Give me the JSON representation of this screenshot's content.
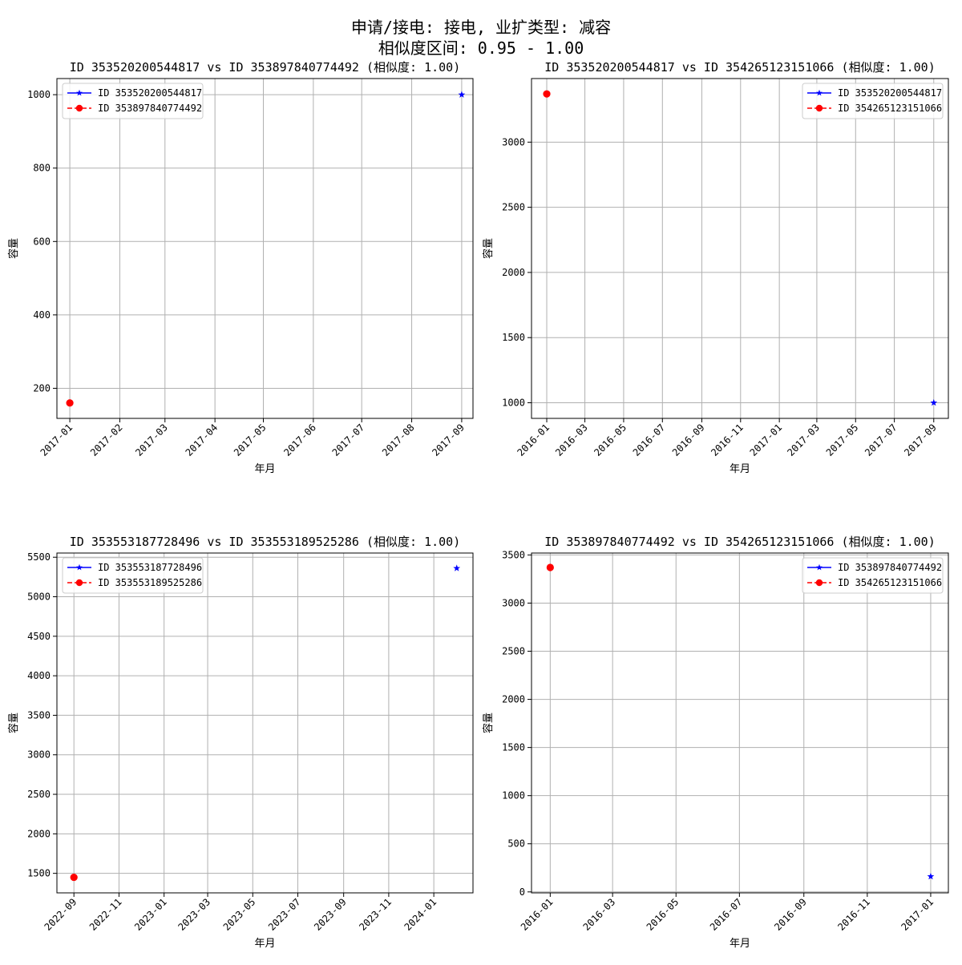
{
  "figure": {
    "title_line1": "申请/接电: 接电, 业扩类型: 减容",
    "title_line2": "相似度区间: 0.95 - 1.00"
  },
  "colors": {
    "series_a": "#0000ff",
    "series_b": "#ff0000",
    "grid": "#b0b0b0"
  },
  "chart_data": [
    {
      "type": "line",
      "title": "ID 353520200544817 vs ID 353897840774492 (相似度: 1.00)",
      "xlabel": "年月",
      "ylabel": "容量",
      "x_ticks": [
        "2017-01",
        "2017-02",
        "2017-03",
        "2017-04",
        "2017-05",
        "2017-06",
        "2017-07",
        "2017-08",
        "2017-09"
      ],
      "xlim": [
        "2016-12-24",
        "2017-09-08"
      ],
      "y_ticks": [
        200,
        400,
        600,
        800,
        1000
      ],
      "ylim": [
        118,
        1044
      ],
      "grid": true,
      "legend": "top-left",
      "series": [
        {
          "name": "ID 353520200544817",
          "color": "#0000ff",
          "marker": "star",
          "x": [
            "2017-09-01"
          ],
          "y": [
            1000
          ]
        },
        {
          "name": "ID 353897840774492",
          "color": "#ff0000",
          "marker": "circle",
          "x": [
            "2017-01-01"
          ],
          "y": [
            160
          ]
        }
      ]
    },
    {
      "type": "line",
      "title": "ID 353520200544817 vs ID 354265123151066 (相似度: 1.00)",
      "xlabel": "年月",
      "ylabel": "容量",
      "x_ticks": [
        "2016-01",
        "2016-03",
        "2016-05",
        "2016-07",
        "2016-09",
        "2016-11",
        "2017-01",
        "2017-03",
        "2017-05",
        "2017-07",
        "2017-09"
      ],
      "xlim": [
        "2015-12-08",
        "2017-09-24"
      ],
      "y_ticks": [
        1000,
        1500,
        2000,
        2500,
        3000
      ],
      "ylim": [
        880,
        3488
      ],
      "grid": true,
      "legend": "top-right",
      "series": [
        {
          "name": "ID 353520200544817",
          "color": "#0000ff",
          "marker": "star",
          "x": [
            "2017-09-01"
          ],
          "y": [
            1000
          ]
        },
        {
          "name": "ID 354265123151066",
          "color": "#ff0000",
          "marker": "circle",
          "x": [
            "2016-01-01"
          ],
          "y": [
            3370
          ]
        }
      ]
    },
    {
      "type": "line",
      "title": "ID 353553187728496 vs ID 353553189525286 (相似度: 1.00)",
      "xlabel": "年月",
      "ylabel": "容量",
      "x_ticks": [
        "2022-09",
        "2022-11",
        "2023-01",
        "2023-03",
        "2023-05",
        "2023-07",
        "2023-09",
        "2023-11",
        "2024-01"
      ],
      "xlim": [
        "2022-08-09",
        "2024-02-23"
      ],
      "y_ticks": [
        1500,
        2000,
        2500,
        3000,
        3500,
        4000,
        4500,
        5000,
        5500
      ],
      "ylim": [
        1253,
        5553
      ],
      "grid": true,
      "legend": "top-left",
      "series": [
        {
          "name": "ID 353553187728496",
          "color": "#0000ff",
          "marker": "star",
          "x": [
            "2024-02-01"
          ],
          "y": [
            5360
          ]
        },
        {
          "name": "ID 353553189525286",
          "color": "#ff0000",
          "marker": "circle",
          "x": [
            "2022-09-01"
          ],
          "y": [
            1450
          ]
        }
      ]
    },
    {
      "type": "line",
      "title": "ID 353897840774492 vs ID 354265123151066 (相似度: 1.00)",
      "xlabel": "年月",
      "ylabel": "容量",
      "x_ticks": [
        "2016-01",
        "2016-03",
        "2016-05",
        "2016-07",
        "2016-09",
        "2016-11",
        "2017-01"
      ],
      "xlim": [
        "2015-12-14",
        "2017-01-18"
      ],
      "y_ticks": [
        0,
        500,
        1000,
        1500,
        2000,
        2500,
        3000,
        3500
      ],
      "ylim": [
        -10,
        3520
      ],
      "grid": true,
      "legend": "top-right",
      "series": [
        {
          "name": "ID 353897840774492",
          "color": "#0000ff",
          "marker": "star",
          "x": [
            "2017-01-01"
          ],
          "y": [
            160
          ]
        },
        {
          "name": "ID 354265123151066",
          "color": "#ff0000",
          "marker": "circle",
          "x": [
            "2016-01-01"
          ],
          "y": [
            3370
          ]
        }
      ]
    }
  ]
}
